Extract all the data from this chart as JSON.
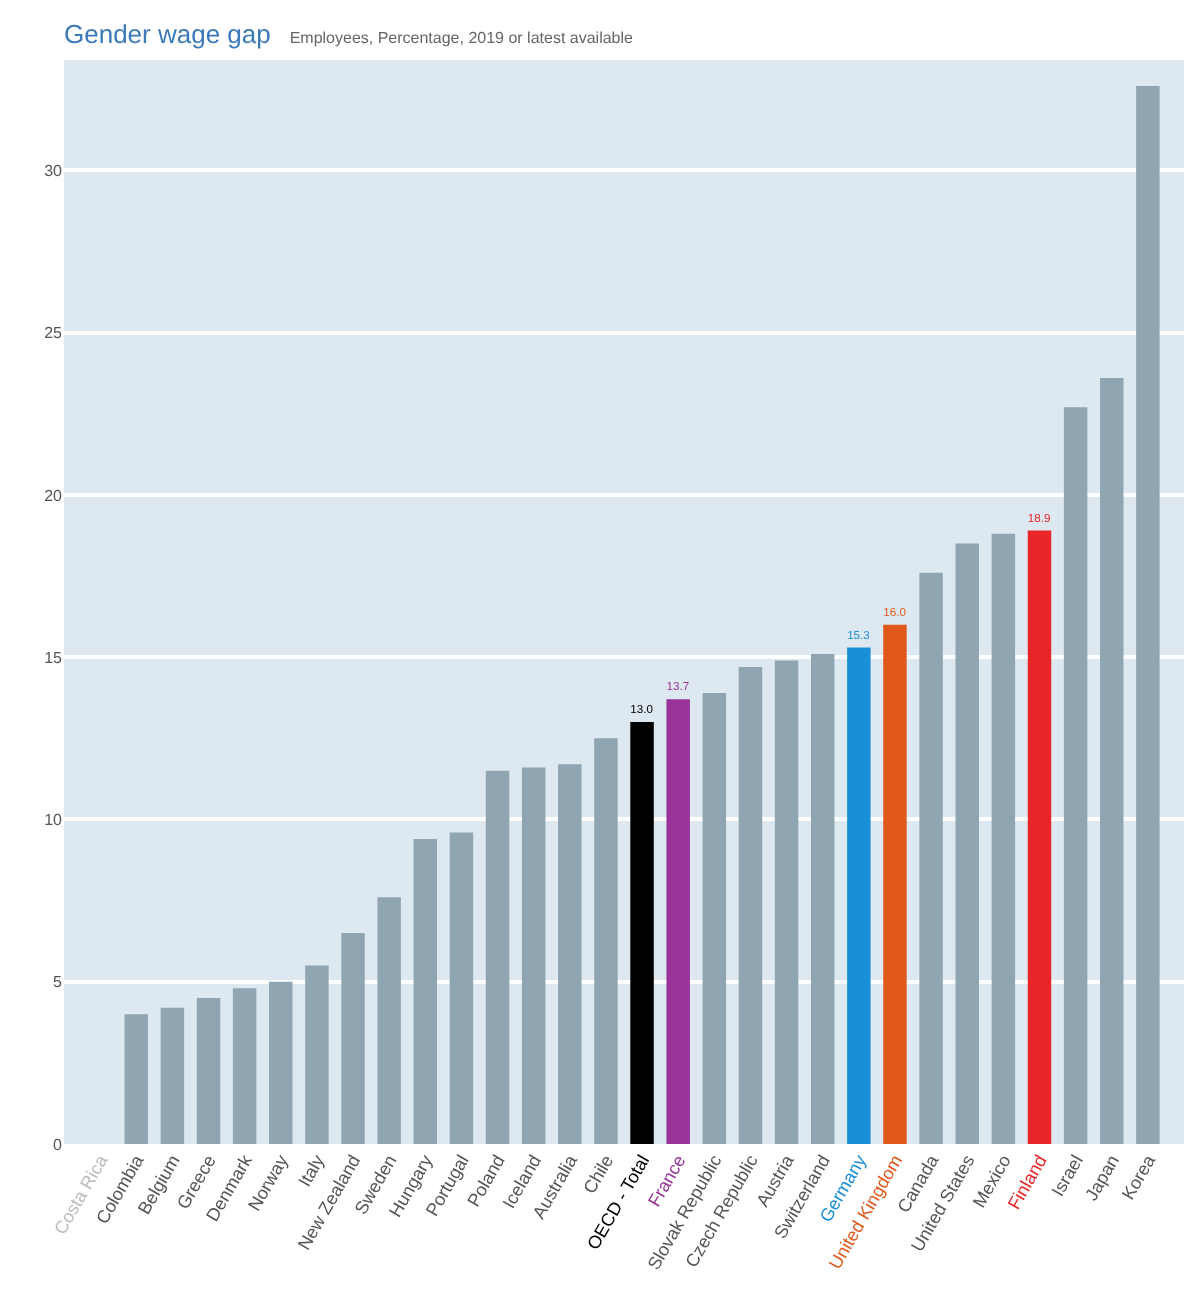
{
  "chart_data": {
    "type": "bar",
    "title": "Gender wage gap",
    "subtitle": "Employees, Percentage, 2019 or latest available",
    "categories": [
      "Costa Rica",
      "Colombia",
      "Belgium",
      "Greece",
      "Denmark",
      "Norway",
      "Italy",
      "New Zealand",
      "Sweden",
      "Hungary",
      "Portugal",
      "Poland",
      "Iceland",
      "Australia",
      "Chile",
      "OECD - Total",
      "France",
      "Slovak Republic",
      "Czech Republic",
      "Austria",
      "Switzerland",
      "Germany",
      "United Kingdom",
      "Canada",
      "United States",
      "Mexico",
      "Finland",
      "Israel",
      "Japan",
      "Korea"
    ],
    "values": [
      null,
      4.0,
      4.2,
      4.5,
      4.8,
      5.0,
      5.5,
      6.5,
      7.6,
      9.4,
      9.6,
      11.5,
      11.6,
      11.7,
      12.5,
      13.0,
      13.7,
      13.9,
      14.7,
      14.9,
      15.1,
      15.3,
      16.0,
      17.6,
      18.5,
      18.8,
      18.9,
      22.7,
      23.6,
      32.6
    ],
    "colors": [
      "#8fa5b2",
      "#8fa5b2",
      "#8fa5b2",
      "#8fa5b2",
      "#8fa5b2",
      "#8fa5b2",
      "#8fa5b2",
      "#8fa5b2",
      "#8fa5b2",
      "#8fa5b2",
      "#8fa5b2",
      "#8fa5b2",
      "#8fa5b2",
      "#8fa5b2",
      "#8fa5b2",
      "#000000",
      "#993399",
      "#8fa5b2",
      "#8fa5b2",
      "#8fa5b2",
      "#8fa5b2",
      "#1a8fd8",
      "#e0581c",
      "#8fa5b2",
      "#8fa5b2",
      "#8fa5b2",
      "#e8262a",
      "#8fa5b2",
      "#8fa5b2",
      "#8fa5b2"
    ],
    "value_labels": [
      null,
      null,
      null,
      null,
      null,
      null,
      null,
      null,
      null,
      null,
      null,
      null,
      null,
      null,
      null,
      "13.0",
      "13.7",
      null,
      null,
      null,
      null,
      "15.3",
      "16.0",
      null,
      null,
      null,
      "18.9",
      null,
      null,
      null
    ],
    "ylim": [
      0,
      33.4
    ],
    "yticks": [
      0,
      5,
      10,
      15,
      20,
      25,
      30
    ],
    "grid": "y"
  }
}
